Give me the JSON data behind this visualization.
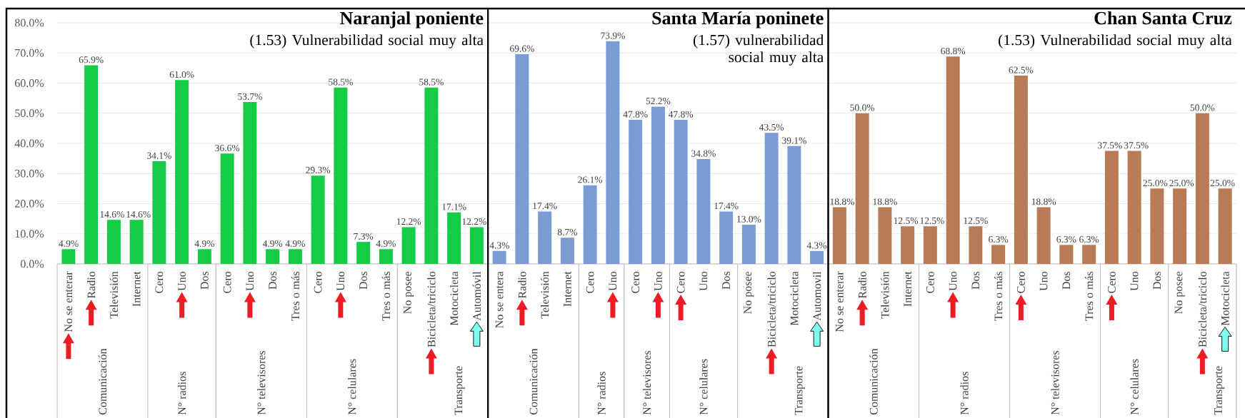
{
  "chart_data": [
    {
      "type": "bar",
      "title": "Naranjal poniente",
      "subtitle": "(1.53) Vulnerabilidad social muy alta",
      "categories": [
        "No se enterar",
        "Radio",
        "Televisión",
        "Internet",
        "Cero",
        "Uno",
        "Dos",
        "Cero",
        "Uno",
        "Dos",
        "Tres o más",
        "Cero",
        "Uno",
        "Dos",
        "Tres o más",
        "No posee",
        "Bicicleta/triciclo",
        "Motocicleta",
        "Automóvil"
      ],
      "values": [
        4.9,
        65.9,
        14.6,
        14.6,
        34.1,
        61.0,
        4.9,
        36.6,
        53.7,
        4.9,
        4.9,
        29.3,
        58.5,
        7.3,
        4.9,
        12.2,
        58.5,
        17.1,
        12.2
      ],
      "value_labels": [
        "4.9%",
        "65.9%",
        "14.6%",
        "14.6%",
        "34.1%",
        "61.0%",
        "4.9%",
        "36.6%",
        "53.7%",
        "4.9%",
        "4.9%",
        "29.3%",
        "58.5%",
        "7.3%",
        "4.9%",
        "12.2%",
        "58.5%",
        "17.1%",
        "12.2%"
      ],
      "color": "#14cc46",
      "ylim": [
        0,
        80
      ],
      "yticks": [
        {
          "value": 0,
          "label": "0.0%"
        },
        {
          "value": 10,
          "label": "10.0%"
        },
        {
          "value": 20,
          "label": "20.0%"
        },
        {
          "value": 30,
          "label": "30.0%"
        },
        {
          "value": 40,
          "label": "40.0%"
        },
        {
          "value": 50,
          "label": "50.0%"
        },
        {
          "value": 60,
          "label": "60.0%"
        },
        {
          "value": 70,
          "label": "70.0%"
        },
        {
          "value": 80,
          "label": "80.0%"
        }
      ],
      "grid": "y",
      "annotations": [
        "Comunicación",
        "N° radios",
        "N° televisores",
        "N° celulares",
        "Transporte"
      ]
    },
    {
      "type": "bar",
      "title": "Santa María poninete",
      "subtitle": "(1.57) vulnerabilidad social muy alta",
      "categories": [
        "No se entera",
        "Radio",
        "Televisión",
        "Internet",
        "Cero",
        "Uno",
        "Cero",
        "Uno",
        "Cero",
        "Uno",
        "Dos",
        "No posee",
        "Bicicleta/triciclo",
        "Motocicleta",
        "Automovil"
      ],
      "values": [
        4.3,
        69.6,
        17.4,
        8.7,
        26.1,
        73.9,
        47.8,
        52.2,
        47.8,
        34.8,
        17.4,
        13.0,
        43.5,
        39.1,
        4.3
      ],
      "value_labels": [
        "4.3%",
        "69.6%",
        "17.4%",
        "8.7%",
        "26.1%",
        "73.9%",
        "47.8%",
        "52.2%",
        "47.8%",
        "34.8%",
        "17.4%",
        "13.0%",
        "43.5%",
        "39.1%",
        "4.3%"
      ],
      "color": "#7b9bd5",
      "ylim": [
        0,
        80
      ],
      "yticks": [
        {
          "value": 0,
          "label": null
        },
        {
          "value": 10,
          "label": null
        },
        {
          "value": 20,
          "label": null
        },
        {
          "value": 30,
          "label": null
        },
        {
          "value": 40,
          "label": null
        },
        {
          "value": 50,
          "label": null
        },
        {
          "value": 60,
          "label": null
        },
        {
          "value": 70,
          "label": null
        },
        {
          "value": 80,
          "label": null
        }
      ],
      "tick_labels": "x",
      "grid": "y",
      "annotations": [
        "Comunicación",
        "N° radios",
        "N° televisores",
        "N° celulares",
        "Transporte"
      ]
    },
    {
      "type": "bar",
      "title": "Chan Santa Cruz",
      "subtitle": "(1.53) Vulnerabilidad social muy alta",
      "categories": [
        "No se enterar",
        "Radio",
        "Televisión",
        "Internet",
        "Cero",
        "Uno",
        "Dos",
        "Tres o más",
        "Cero",
        "Uno",
        "Dos",
        "Tres o más",
        "Cero",
        "Uno",
        "Dos",
        "No posee",
        "Bicicleta/triciclo",
        "Motocicleta"
      ],
      "values": [
        18.8,
        50.0,
        18.8,
        12.5,
        12.5,
        68.8,
        12.5,
        6.3,
        62.5,
        18.8,
        6.3,
        6.3,
        37.5,
        37.5,
        25.0,
        25.0,
        50.0,
        25.0
      ],
      "value_labels": [
        "18.8%",
        "50.0%",
        "18.8%",
        "12.5%",
        "12.5%",
        "68.8%",
        "12.5%",
        "6.3%",
        "62.5%",
        "18.8%",
        "6.3%",
        "6.3%",
        "37.5%",
        "37.5%",
        "25.0%",
        "25.0%",
        "50.0%",
        "25.0%"
      ],
      "color": "#b97a56",
      "ylim": [
        0,
        80
      ],
      "yticks": [
        {
          "value": 0,
          "label": null
        },
        {
          "value": 10,
          "label": null
        },
        {
          "value": 20,
          "label": null
        },
        {
          "value": 30,
          "label": null
        },
        {
          "value": 40,
          "label": null
        },
        {
          "value": 50,
          "label": null
        },
        {
          "value": 60,
          "label": null
        },
        {
          "value": 70,
          "label": null
        },
        {
          "value": 80,
          "label": null
        }
      ],
      "tick_labels": "x",
      "grid": "y",
      "annotations": [
        "Comunicación",
        "N° radios",
        "N° televisores",
        "N° celulares",
        "Transporte"
      ]
    }
  ]
}
